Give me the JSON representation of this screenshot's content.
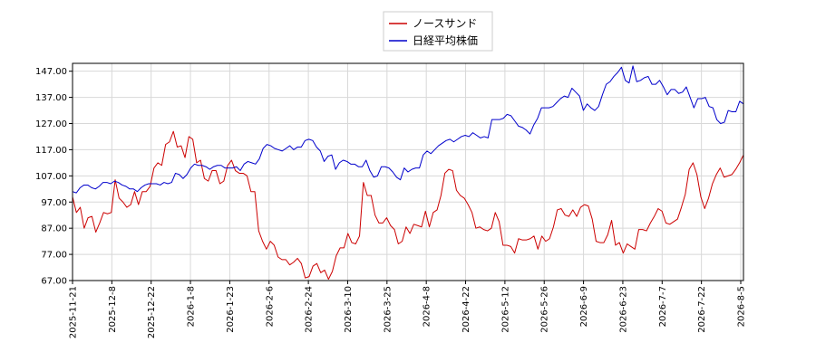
{
  "chart_data": {
    "type": "line",
    "xlabel": "",
    "ylabel": "",
    "ylim": [
      67.0,
      150.0
    ],
    "y_ticks": [
      "67.00",
      "77.00",
      "87.00",
      "97.00",
      "107.00",
      "117.00",
      "127.00",
      "137.00",
      "147.00"
    ],
    "x_ticks": [
      "2025-11-21",
      "2025-12-8",
      "2025-12-22",
      "2026-1-8",
      "2026-1-23",
      "2026-2-6",
      "2026-2-24",
      "2026-3-10",
      "2026-3-25",
      "2026-4-8",
      "2026-4-22",
      "2026-5-12",
      "2026-5-26",
      "2026-6-9",
      "2026-6-23",
      "2026-7-7",
      "2026-7-22",
      "2026-8-5"
    ],
    "grid": true,
    "legend_position": "top-center",
    "series": [
      {
        "name": "ノースサンド",
        "color": "#cc0000",
        "values": [
          99.0,
          93.0,
          95.0,
          87.0,
          91.0,
          91.5,
          85.5,
          89.0,
          93.0,
          92.5,
          93.0,
          105.5,
          98.5,
          97.0,
          95.0,
          96.0,
          101.0,
          96.0,
          101.0,
          101.0,
          103.0,
          110.0,
          112.0,
          111.0,
          119.0,
          120.0,
          124.0,
          118.0,
          118.5,
          114.0,
          122.0,
          121.0,
          112.0,
          113.0,
          106.0,
          105.0,
          109.0,
          109.0,
          104.0,
          105.0,
          111.0,
          113.0,
          109.0,
          108.0,
          108.0,
          107.0,
          101.0,
          101.0,
          86.0,
          82.0,
          79.0,
          82.0,
          80.5,
          76.0,
          75.0,
          75.0,
          73.0,
          74.0,
          75.5,
          73.5,
          68.0,
          68.5,
          72.5,
          73.5,
          70.0,
          71.0,
          67.5,
          70.5,
          76.5,
          79.5,
          79.5,
          85.0,
          81.5,
          81.0,
          84.0,
          104.5,
          99.5,
          99.5,
          92.0,
          89.0,
          89.0,
          91.0,
          88.0,
          86.5,
          81.0,
          82.0,
          87.5,
          85.0,
          88.5,
          88.0,
          87.5,
          93.5,
          87.5,
          93.0,
          94.0,
          99.5,
          108.0,
          109.5,
          109.0,
          101.5,
          99.5,
          98.5,
          96.0,
          93.0,
          87.0,
          87.5,
          86.5,
          86.0,
          87.0,
          93.0,
          89.5,
          80.5,
          80.5,
          80.0,
          77.5,
          83.0,
          82.5,
          82.5,
          83.0,
          84.0,
          79.0,
          84.0,
          82.0,
          83.0,
          87.5,
          94.0,
          94.5,
          92.0,
          91.5,
          94.0,
          91.5,
          95.0,
          96.0,
          95.5,
          90.5,
          82.0,
          81.5,
          81.5,
          84.5,
          90.0,
          80.5,
          81.5,
          77.5,
          81.0,
          80.0,
          79.0,
          86.5,
          86.5,
          86.0,
          89.0,
          91.5,
          94.5,
          93.5,
          89.0,
          88.5,
          89.5,
          90.5,
          95.0,
          100.0,
          109.5,
          112.0,
          107.5,
          99.0,
          94.5,
          98.5,
          104.0,
          107.5,
          110.0,
          106.5,
          107.0,
          107.5,
          109.5,
          112.0,
          115.0
        ]
      },
      {
        "name": "日経平均株価",
        "color": "#0000cc",
        "values": [
          101.0,
          100.5,
          102.5,
          103.5,
          103.5,
          102.5,
          102.0,
          103.0,
          104.5,
          104.5,
          104.0,
          105.0,
          104.5,
          103.5,
          103.0,
          102.0,
          102.0,
          101.0,
          102.5,
          103.5,
          104.0,
          104.0,
          104.0,
          103.5,
          104.5,
          104.0,
          104.5,
          108.0,
          107.5,
          106.0,
          107.5,
          110.0,
          111.5,
          111.0,
          111.0,
          110.5,
          109.5,
          110.5,
          111.0,
          111.0,
          110.0,
          110.0,
          110.0,
          110.5,
          109.0,
          111.5,
          112.5,
          112.0,
          111.5,
          113.5,
          117.5,
          119.0,
          118.5,
          117.5,
          117.0,
          116.5,
          117.5,
          118.5,
          117.0,
          118.0,
          118.0,
          120.5,
          121.0,
          120.5,
          118.0,
          116.5,
          112.5,
          114.5,
          115.0,
          109.5,
          112.0,
          113.0,
          112.5,
          111.5,
          111.5,
          110.5,
          110.5,
          113.0,
          109.0,
          106.5,
          107.0,
          110.5,
          110.5,
          110.0,
          108.5,
          106.5,
          105.5,
          110.0,
          108.5,
          109.5,
          110.0,
          110.0,
          115.0,
          116.5,
          115.5,
          117.0,
          118.5,
          119.5,
          120.5,
          121.0,
          120.0,
          121.0,
          122.0,
          122.5,
          122.0,
          123.5,
          122.5,
          121.5,
          122.0,
          121.5,
          128.5,
          128.5,
          128.5,
          129.0,
          130.5,
          130.0,
          128.0,
          126.0,
          125.5,
          124.5,
          123.0,
          126.5,
          129.0,
          133.0,
          133.0,
          133.0,
          133.5,
          135.0,
          136.5,
          137.5,
          137.0,
          140.5,
          139.0,
          137.5,
          132.0,
          134.5,
          133.0,
          132.0,
          133.5,
          138.0,
          142.0,
          143.0,
          145.0,
          146.5,
          148.5,
          143.5,
          142.5,
          149.0,
          143.0,
          143.5,
          144.5,
          145.0,
          142.0,
          142.0,
          143.5,
          141.0,
          138.0,
          140.0,
          140.0,
          138.5,
          139.0,
          141.0,
          137.0,
          133.0,
          136.5,
          136.5,
          137.0,
          133.5,
          133.0,
          128.5,
          127.0,
          127.5,
          132.0,
          131.5,
          131.5,
          135.5,
          134.5
        ]
      }
    ]
  }
}
